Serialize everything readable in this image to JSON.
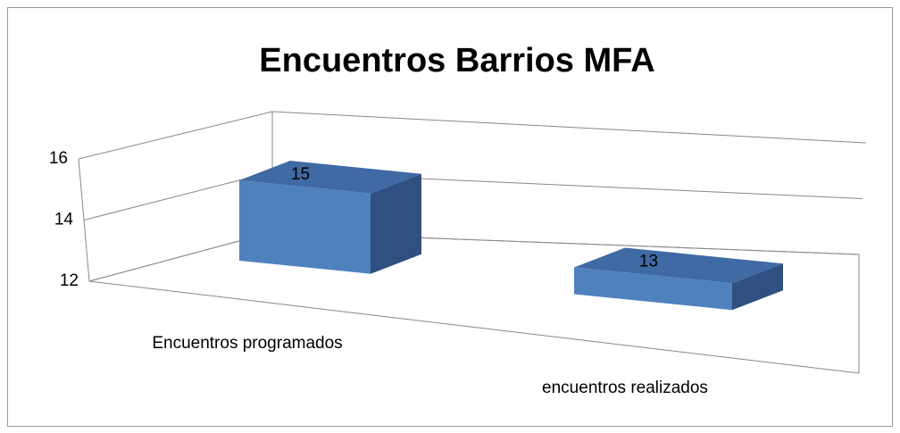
{
  "chart_data": {
    "type": "bar",
    "title": "Encuentros Barrios MFA",
    "categories": [
      "Encuentros programados",
      "encuentros realizados"
    ],
    "values": [
      15,
      13
    ],
    "color": "#4f81bd",
    "ylim": [
      12,
      16
    ],
    "yticks": [
      12,
      14,
      16
    ],
    "grid": true,
    "three_d": true
  }
}
